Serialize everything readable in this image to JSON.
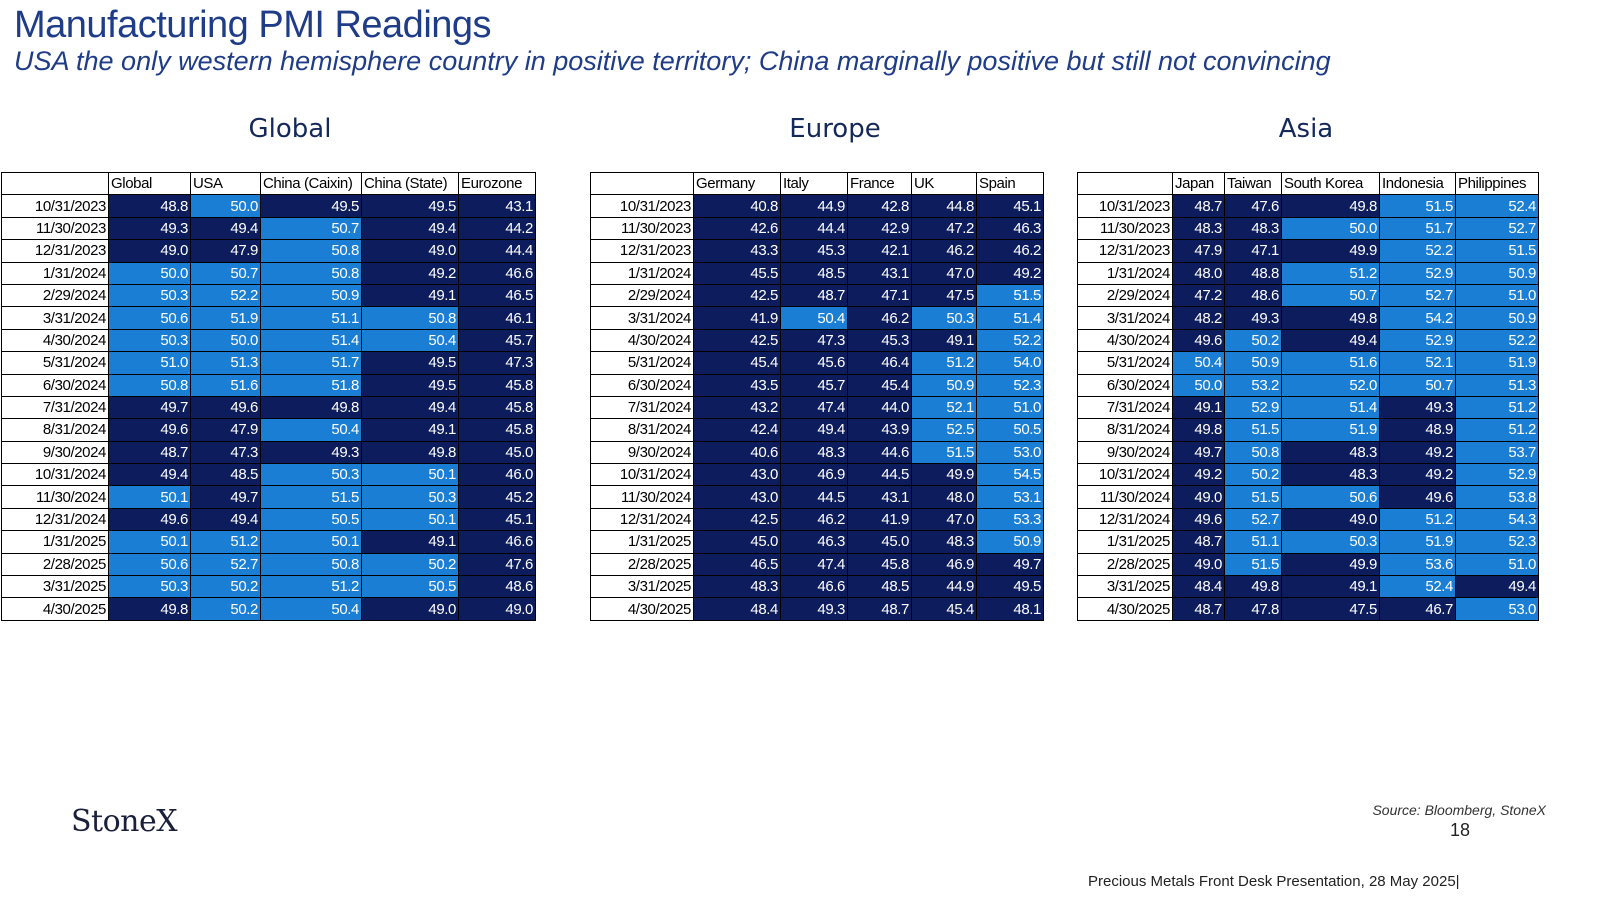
{
  "title": "Manufacturing PMI Readings",
  "subtitle": "USA the only western hemisphere country in positive territory; China marginally positive but still not convincing",
  "colors": {
    "below_50": "#0c1c5c",
    "at_or_above_50": "#1a7fd4"
  },
  "dates": [
    "10/31/2023",
    "11/30/2023",
    "12/31/2023",
    "1/31/2024",
    "2/29/2024",
    "3/31/2024",
    "4/30/2024",
    "5/31/2024",
    "6/30/2024",
    "7/31/2024",
    "8/31/2024",
    "9/30/2024",
    "10/31/2024",
    "11/30/2024",
    "12/31/2024",
    "1/31/2025",
    "2/28/2025",
    "3/31/2025",
    "4/30/2025"
  ],
  "sections": [
    {
      "heading": "Global",
      "columns": [
        "Global",
        "USA",
        "China (Caixin)",
        "China (State)",
        "Eurozone"
      ],
      "rows": [
        [
          48.8,
          50.0,
          49.5,
          49.5,
          43.1
        ],
        [
          49.3,
          49.4,
          50.7,
          49.4,
          44.2
        ],
        [
          49.0,
          47.9,
          50.8,
          49.0,
          44.4
        ],
        [
          50.0,
          50.7,
          50.8,
          49.2,
          46.6
        ],
        [
          50.3,
          52.2,
          50.9,
          49.1,
          46.5
        ],
        [
          50.6,
          51.9,
          51.1,
          50.8,
          46.1
        ],
        [
          50.3,
          50.0,
          51.4,
          50.4,
          45.7
        ],
        [
          51.0,
          51.3,
          51.7,
          49.5,
          47.3
        ],
        [
          50.8,
          51.6,
          51.8,
          49.5,
          45.8
        ],
        [
          49.7,
          49.6,
          49.8,
          49.4,
          45.8
        ],
        [
          49.6,
          47.9,
          50.4,
          49.1,
          45.8
        ],
        [
          48.7,
          47.3,
          49.3,
          49.8,
          45.0
        ],
        [
          49.4,
          48.5,
          50.3,
          50.1,
          46.0
        ],
        [
          50.1,
          49.7,
          51.5,
          50.3,
          45.2
        ],
        [
          49.6,
          49.4,
          50.5,
          50.1,
          45.1
        ],
        [
          50.1,
          51.2,
          50.1,
          49.1,
          46.6
        ],
        [
          50.6,
          52.7,
          50.8,
          50.2,
          47.6
        ],
        [
          50.3,
          50.2,
          51.2,
          50.5,
          48.6
        ],
        [
          49.8,
          50.2,
          50.4,
          49.0,
          49.0
        ]
      ]
    },
    {
      "heading": "Europe",
      "columns": [
        "Germany",
        "Italy",
        "France",
        "UK",
        "Spain"
      ],
      "rows": [
        [
          40.8,
          44.9,
          42.8,
          44.8,
          45.1
        ],
        [
          42.6,
          44.4,
          42.9,
          47.2,
          46.3
        ],
        [
          43.3,
          45.3,
          42.1,
          46.2,
          46.2
        ],
        [
          45.5,
          48.5,
          43.1,
          47.0,
          49.2
        ],
        [
          42.5,
          48.7,
          47.1,
          47.5,
          51.5
        ],
        [
          41.9,
          50.4,
          46.2,
          50.3,
          51.4
        ],
        [
          42.5,
          47.3,
          45.3,
          49.1,
          52.2
        ],
        [
          45.4,
          45.6,
          46.4,
          51.2,
          54.0
        ],
        [
          43.5,
          45.7,
          45.4,
          50.9,
          52.3
        ],
        [
          43.2,
          47.4,
          44.0,
          52.1,
          51.0
        ],
        [
          42.4,
          49.4,
          43.9,
          52.5,
          50.5
        ],
        [
          40.6,
          48.3,
          44.6,
          51.5,
          53.0
        ],
        [
          43.0,
          46.9,
          44.5,
          49.9,
          54.5
        ],
        [
          43.0,
          44.5,
          43.1,
          48.0,
          53.1
        ],
        [
          42.5,
          46.2,
          41.9,
          47.0,
          53.3
        ],
        [
          45.0,
          46.3,
          45.0,
          48.3,
          50.9
        ],
        [
          46.5,
          47.4,
          45.8,
          46.9,
          49.7
        ],
        [
          48.3,
          46.6,
          48.5,
          44.9,
          49.5
        ],
        [
          48.4,
          49.3,
          48.7,
          45.4,
          48.1
        ]
      ]
    },
    {
      "heading": "Asia",
      "columns": [
        "Japan",
        "Taiwan",
        "South Korea",
        "Indonesia",
        "Philippines"
      ],
      "rows": [
        [
          48.7,
          47.6,
          49.8,
          51.5,
          52.4
        ],
        [
          48.3,
          48.3,
          50.0,
          51.7,
          52.7
        ],
        [
          47.9,
          47.1,
          49.9,
          52.2,
          51.5
        ],
        [
          48.0,
          48.8,
          51.2,
          52.9,
          50.9
        ],
        [
          47.2,
          48.6,
          50.7,
          52.7,
          51.0
        ],
        [
          48.2,
          49.3,
          49.8,
          54.2,
          50.9
        ],
        [
          49.6,
          50.2,
          49.4,
          52.9,
          52.2
        ],
        [
          50.4,
          50.9,
          51.6,
          52.1,
          51.9
        ],
        [
          50.0,
          53.2,
          52.0,
          50.7,
          51.3
        ],
        [
          49.1,
          52.9,
          51.4,
          49.3,
          51.2
        ],
        [
          49.8,
          51.5,
          51.9,
          48.9,
          51.2
        ],
        [
          49.7,
          50.8,
          48.3,
          49.2,
          53.7
        ],
        [
          49.2,
          50.2,
          48.3,
          49.2,
          52.9
        ],
        [
          49.0,
          51.5,
          50.6,
          49.6,
          53.8
        ],
        [
          49.6,
          52.7,
          49.0,
          51.2,
          54.3
        ],
        [
          48.7,
          51.1,
          50.3,
          51.9,
          52.3
        ],
        [
          49.0,
          51.5,
          49.9,
          53.6,
          51.0
        ],
        [
          48.4,
          49.8,
          49.1,
          52.4,
          49.4
        ],
        [
          48.7,
          47.8,
          47.5,
          46.7,
          53.0
        ]
      ]
    }
  ],
  "logo": "StoneX",
  "source": "Source: Bloomberg, StoneX",
  "page_number": "18",
  "footer": "Precious Metals Front Desk Presentation, 28 May 2025|"
}
